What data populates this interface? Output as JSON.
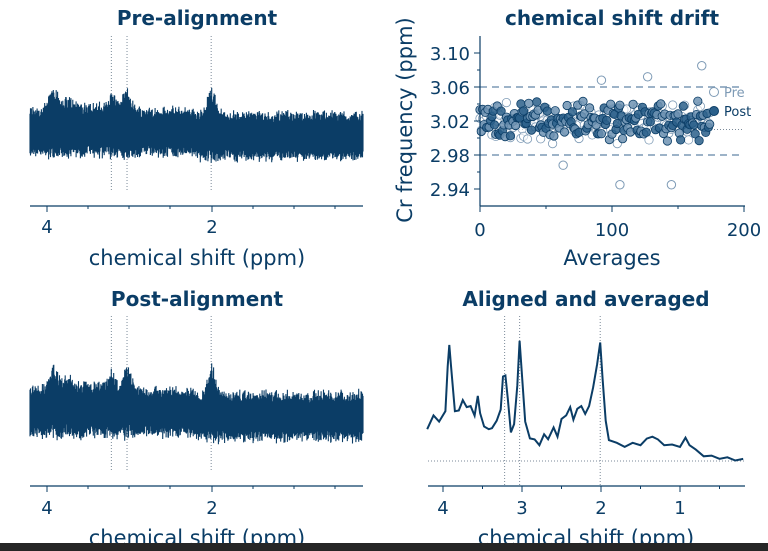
{
  "colors": {
    "primary": "#0b3d66",
    "light": "#7d9ab5",
    "grid": "#7b8a99",
    "bottom_bar": "#262626"
  },
  "chart_data": [
    {
      "type": "line",
      "title": "Pre-alignment",
      "xlabel": "chemical shift (ppm)",
      "x_reversed": true,
      "xlim": [
        4.2,
        0.2
      ],
      "xticks": [
        "4",
        "2"
      ],
      "vlines": [
        3.22,
        3.03,
        2.01
      ],
      "noisy_trace": true,
      "peaks_ppm": [
        3.92,
        3.75,
        3.21,
        3.03,
        2.0
      ],
      "y_axis_hidden": true
    },
    {
      "type": "scatter",
      "title": "chemical shift drift",
      "xlabel": "Averages",
      "ylabel": "Cr frequency (ppm)",
      "xlim": [
        0,
        200
      ],
      "ylim": [
        2.92,
        3.12
      ],
      "xticks": [
        "0",
        "100",
        "200"
      ],
      "yticks": [
        "2.94",
        "2.98",
        "3.02",
        "3.06",
        "3.10"
      ],
      "hlines_dashed": [
        3.06,
        2.98
      ],
      "hline_dotted": 3.01,
      "legend": {
        "entries": [
          "Pre",
          "Post"
        ],
        "position": "right"
      },
      "n_averages": 175,
      "series": [
        {
          "name": "Pre",
          "marker": "open circle",
          "mean": 3.02,
          "spread": 0.015
        },
        {
          "name": "Post",
          "marker": "filled circle",
          "mean": 3.02,
          "spread": 0.015
        }
      ],
      "outliers": [
        {
          "x": 92,
          "y": 3.068
        },
        {
          "x": 106,
          "y": 2.945
        },
        {
          "x": 127,
          "y": 3.072
        },
        {
          "x": 145,
          "y": 2.945
        },
        {
          "x": 168,
          "y": 3.085
        },
        {
          "x": 63,
          "y": 2.968
        }
      ]
    },
    {
      "type": "line",
      "title": "Post-alignment",
      "xlabel": "chemical shift (ppm)",
      "x_reversed": true,
      "xlim": [
        4.2,
        0.2
      ],
      "xticks": [
        "4",
        "2"
      ],
      "vlines": [
        3.22,
        3.03,
        2.01
      ],
      "noisy_trace": true,
      "peaks_ppm": [
        3.92,
        3.75,
        3.21,
        3.03,
        2.0
      ],
      "y_axis_hidden": true
    },
    {
      "type": "line",
      "title": "Aligned and averaged",
      "xlabel": "chemical shift (ppm)",
      "x_reversed": true,
      "xlim": [
        4.2,
        0.2
      ],
      "xticks": [
        "4",
        "3",
        "2",
        "1"
      ],
      "vlines": [
        3.22,
        3.03,
        2.01
      ],
      "baseline_dotted": true,
      "points": [
        [
          4.2,
          0.36
        ],
        [
          4.12,
          0.55
        ],
        [
          4.05,
          0.45
        ],
        [
          3.97,
          0.6
        ],
        [
          3.94,
          1.1
        ],
        [
          3.92,
          1.38
        ],
        [
          3.9,
          1.12
        ],
        [
          3.85,
          0.6
        ],
        [
          3.8,
          0.58
        ],
        [
          3.75,
          0.73
        ],
        [
          3.7,
          0.62
        ],
        [
          3.65,
          0.66
        ],
        [
          3.6,
          0.52
        ],
        [
          3.56,
          0.78
        ],
        [
          3.53,
          0.55
        ],
        [
          3.48,
          0.42
        ],
        [
          3.42,
          0.36
        ],
        [
          3.38,
          0.4
        ],
        [
          3.32,
          0.46
        ],
        [
          3.27,
          0.62
        ],
        [
          3.24,
          0.98
        ],
        [
          3.21,
          1.02
        ],
        [
          3.18,
          0.72
        ],
        [
          3.14,
          0.35
        ],
        [
          3.1,
          0.42
        ],
        [
          3.06,
          0.9
        ],
        [
          3.03,
          1.4
        ],
        [
          3.0,
          1.02
        ],
        [
          2.96,
          0.45
        ],
        [
          2.9,
          0.28
        ],
        [
          2.84,
          0.24
        ],
        [
          2.78,
          0.2
        ],
        [
          2.72,
          0.3
        ],
        [
          2.67,
          0.27
        ],
        [
          2.6,
          0.38
        ],
        [
          2.55,
          0.3
        ],
        [
          2.5,
          0.48
        ],
        [
          2.44,
          0.55
        ],
        [
          2.39,
          0.62
        ],
        [
          2.35,
          0.5
        ],
        [
          2.3,
          0.6
        ],
        [
          2.25,
          0.66
        ],
        [
          2.2,
          0.54
        ],
        [
          2.15,
          0.66
        ],
        [
          2.1,
          0.85
        ],
        [
          2.05,
          1.15
        ],
        [
          2.01,
          1.38
        ],
        [
          1.98,
          0.98
        ],
        [
          1.94,
          0.46
        ],
        [
          1.9,
          0.26
        ],
        [
          1.8,
          0.2
        ],
        [
          1.7,
          0.18
        ],
        [
          1.6,
          0.2
        ],
        [
          1.5,
          0.2
        ],
        [
          1.42,
          0.25
        ],
        [
          1.35,
          0.3
        ],
        [
          1.28,
          0.24
        ],
        [
          1.2,
          0.2
        ],
        [
          1.1,
          0.18
        ],
        [
          1.0,
          0.18
        ],
        [
          0.93,
          0.26
        ],
        [
          0.88,
          0.2
        ],
        [
          0.8,
          0.12
        ],
        [
          0.7,
          0.07
        ],
        [
          0.6,
          0.05
        ],
        [
          0.5,
          0.04
        ],
        [
          0.4,
          0.03
        ],
        [
          0.3,
          0.02
        ],
        [
          0.2,
          0.01
        ]
      ]
    }
  ]
}
